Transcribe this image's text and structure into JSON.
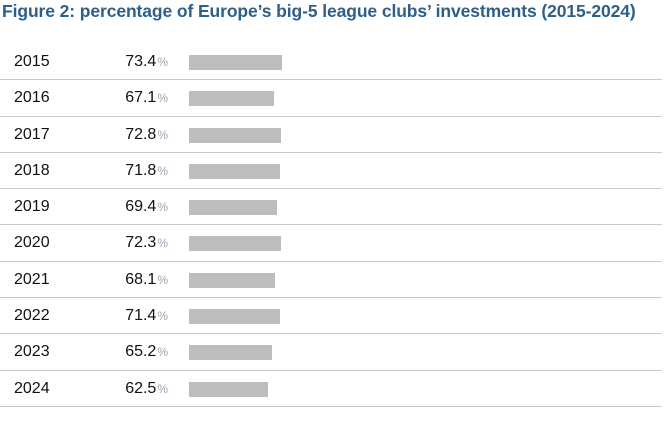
{
  "title": "Figure 2: percentage of Europe’s big-5 league clubs’ investments (2015-2024)",
  "chart_data": {
    "type": "bar",
    "orientation": "horizontal",
    "title": "Figure 2: percentage of Europe’s big-5 league clubs’ investments (2015-2024)",
    "unit": "%",
    "categories": [
      "2015",
      "2016",
      "2017",
      "2018",
      "2019",
      "2020",
      "2021",
      "2022",
      "2023",
      "2024"
    ],
    "values": [
      73.4,
      67.1,
      72.8,
      71.8,
      69.4,
      72.3,
      68.1,
      71.4,
      65.2,
      62.5
    ],
    "value_labels": [
      "73.4",
      "67.1",
      "72.8",
      "71.8",
      "69.4",
      "72.3",
      "68.1",
      "71.4",
      "65.2",
      "62.5"
    ],
    "bar_color": "#bdbdbd",
    "title_color": "#2e5f8a",
    "grid": false
  }
}
